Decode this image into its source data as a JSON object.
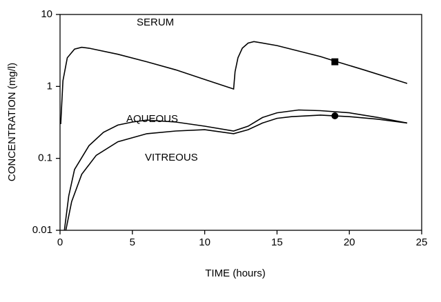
{
  "chart_data": {
    "type": "line",
    "xlabel": "TIME  (hours)",
    "ylabel": "CONCENTRATION  (mg/l)",
    "log_y": true,
    "xlim": [
      0,
      25
    ],
    "xticks": [
      0,
      5,
      10,
      15,
      20,
      25
    ],
    "ylim": [
      0.01,
      10
    ],
    "yticks": [
      0.01,
      0.1,
      1,
      10
    ],
    "color": "#000000",
    "series": [
      {
        "name": "SERUM",
        "x": [
          0.05,
          0.2,
          0.5,
          1,
          1.5,
          2,
          4,
          6,
          8,
          10,
          12,
          12.1,
          12.3,
          12.6,
          13,
          13.4,
          15,
          18,
          19,
          21,
          24
        ],
        "values": [
          0.3,
          1.2,
          2.5,
          3.3,
          3.5,
          3.4,
          2.8,
          2.2,
          1.7,
          1.25,
          0.92,
          1.6,
          2.5,
          3.4,
          4.0,
          4.2,
          3.7,
          2.6,
          2.25,
          1.7,
          1.1
        ]
      },
      {
        "name": "AQUEOUS",
        "x": [
          0.3,
          0.6,
          1,
          2,
          3,
          4,
          5,
          6,
          8,
          10,
          12,
          13,
          14,
          15,
          16.5,
          18,
          20,
          22,
          24
        ],
        "values": [
          0.01,
          0.03,
          0.07,
          0.15,
          0.23,
          0.29,
          0.32,
          0.34,
          0.32,
          0.28,
          0.24,
          0.28,
          0.37,
          0.43,
          0.47,
          0.46,
          0.43,
          0.37,
          0.31
        ]
      },
      {
        "name": "VITREOUS",
        "x": [
          0.4,
          0.8,
          1.5,
          2.5,
          4,
          6,
          8,
          10,
          12,
          13,
          14,
          15,
          16,
          18,
          20,
          22,
          24
        ],
        "values": [
          0.01,
          0.025,
          0.06,
          0.11,
          0.17,
          0.22,
          0.24,
          0.25,
          0.22,
          0.25,
          0.31,
          0.36,
          0.38,
          0.4,
          0.38,
          0.35,
          0.31
        ]
      }
    ],
    "points": [
      {
        "x": 19,
        "y": 2.2,
        "marker": "square"
      },
      {
        "x": 19,
        "y": 0.39,
        "marker": "circle"
      }
    ]
  }
}
